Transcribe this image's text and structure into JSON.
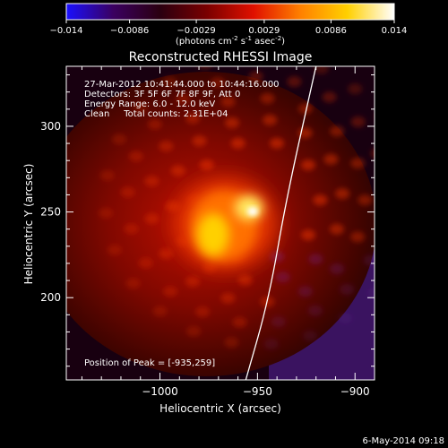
{
  "colorbar": {
    "ticks": [
      "-0.014",
      "-0.0086",
      "-0.0029",
      "0.0029",
      "0.0086",
      "0.014"
    ],
    "units_main": "(photons cm",
    "units_sup1": "-2",
    "units_mid": " s",
    "units_sup2": "-1",
    "units_end": " asec",
    "units_sup3": "-2",
    "units_close": ")",
    "colors": [
      "#1a10ff",
      "#3a0060",
      "#2a0010",
      "#7a0000",
      "#e01000",
      "#ff8000",
      "#ffd000",
      "#ffffff"
    ]
  },
  "title": "Reconstructed RHESSI Image",
  "info": {
    "line1": "27-Mar-2012 10:41:44.000 to 10:44:16.000",
    "line2": "Detectors: 3F 5F 6F 7F 8F 9F, Att 0",
    "line3": "Energy Range: 6.0 - 12.0 keV",
    "line4": "Clean     Total counts: 2.31E+04"
  },
  "peak_label": "Position of Peak = [-935,259]",
  "footer_date": "6-May-2014 09:18",
  "chart_data": {
    "type": "heatmap",
    "title": "Reconstructed RHESSI Image",
    "xlabel": "Heliocentric X (arcsec)",
    "ylabel": "Heliocentric Y (arcsec)",
    "xlim": [
      -1048,
      -890
    ],
    "ylim": [
      152,
      335
    ],
    "x_ticks": [
      -1000,
      -950,
      -900
    ],
    "x_tick_labels": [
      "−1000",
      "−950",
      "−900"
    ],
    "y_ticks": [
      200,
      250,
      300
    ],
    "y_tick_labels": [
      "200",
      "250",
      "300"
    ],
    "peak": {
      "x": -935,
      "y": 259
    },
    "source_center": {
      "x": -950,
      "y": 257
    },
    "colorbar_range": [
      -0.014,
      0.014
    ],
    "limb_curve": [
      [
        -956,
        152
      ],
      [
        -944,
        200
      ],
      [
        -935,
        259
      ],
      [
        -920,
        335
      ]
    ]
  }
}
